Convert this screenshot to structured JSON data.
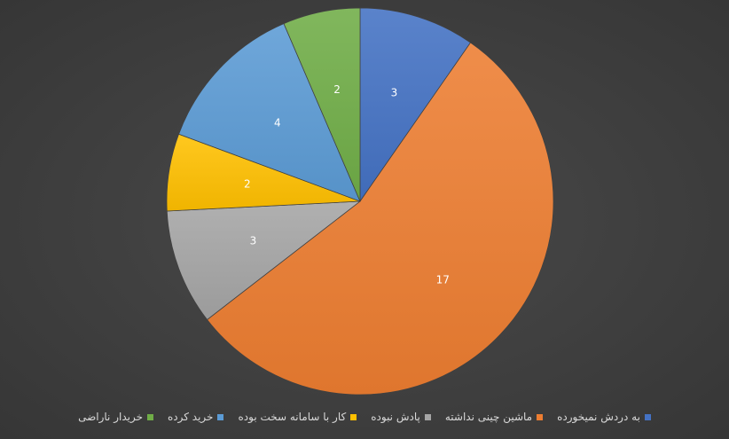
{
  "chart_data": {
    "type": "pie",
    "categories": [
      "به دردش نمیخورده",
      "ماشین چینی نداشته",
      "پادش نبوده",
      "کار با سامانه سخت بوده",
      "خرید کرده",
      "خریدار ناراضی"
    ],
    "values": [
      3,
      17,
      3,
      2,
      4,
      2
    ],
    "colors": [
      "#4472c4",
      "#ed7d31",
      "#a5a5a5",
      "#ffc000",
      "#5b9bd5",
      "#70ad47"
    ],
    "data_labels": [
      "3",
      "17",
      "3",
      "2",
      "4",
      "2"
    ],
    "title": "",
    "legend_position": "bottom",
    "start_angle": "12 o'clock",
    "direction": "clockwise"
  }
}
